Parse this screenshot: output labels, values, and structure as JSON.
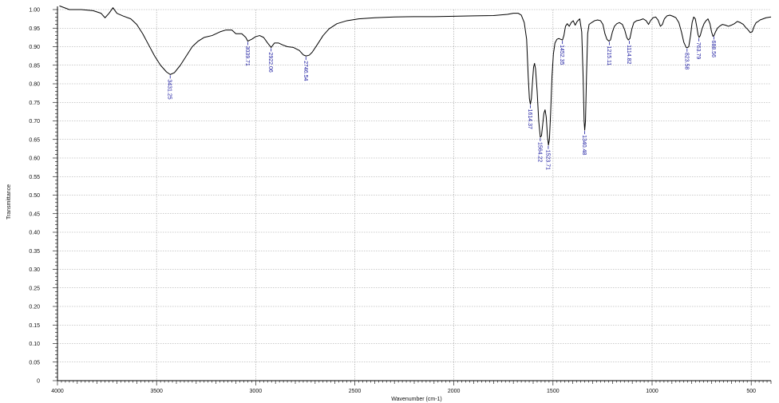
{
  "chart_data": {
    "type": "line",
    "title": "",
    "xlabel": "Wavenumber (cm-1)",
    "ylabel": "Transmittance",
    "xlim": [
      4000,
      400
    ],
    "ylim": [
      0,
      1.0
    ],
    "x_reversed": true,
    "x_ticks": [
      4000,
      3500,
      3000,
      2500,
      2000,
      1500,
      1000,
      500
    ],
    "x_tick_labels": [
      "4000",
      "3500",
      "3000",
      "2500",
      "2000",
      "1500",
      "1000",
      "500"
    ],
    "y_ticks": [
      0,
      0.05,
      0.1,
      0.15,
      0.2,
      0.25,
      0.3,
      0.35,
      0.4,
      0.45,
      0.5,
      0.55,
      0.6,
      0.65,
      0.7,
      0.75,
      0.8,
      0.85,
      0.9,
      0.95,
      1.0
    ],
    "y_tick_labels": [
      "0",
      "0.05",
      "0.10",
      "0.15",
      "0.20",
      "0.25",
      "0.30",
      "0.35",
      "0.40",
      "0.45",
      "0.50",
      "0.55",
      "0.60",
      "0.65",
      "0.70",
      "0.75",
      "0.80",
      "0.85",
      "0.90",
      "0.95",
      "1.00"
    ],
    "grid": true,
    "colors": {
      "line": "#000000",
      "peak_label": "#1a1aa0",
      "grid": "#9a9a9a"
    },
    "series": [
      {
        "points": [
          [
            3990,
            1.01
          ],
          [
            3940,
            1.0
          ],
          [
            3880,
            1.0
          ],
          [
            3820,
            0.997
          ],
          [
            3780,
            0.99
          ],
          [
            3760,
            0.978
          ],
          [
            3740,
            0.99
          ],
          [
            3720,
            1.005
          ],
          [
            3700,
            0.99
          ],
          [
            3670,
            0.983
          ],
          [
            3630,
            0.975
          ],
          [
            3600,
            0.96
          ],
          [
            3570,
            0.935
          ],
          [
            3540,
            0.905
          ],
          [
            3510,
            0.875
          ],
          [
            3480,
            0.85
          ],
          [
            3450,
            0.832
          ],
          [
            3431,
            0.825
          ],
          [
            3410,
            0.83
          ],
          [
            3380,
            0.85
          ],
          [
            3350,
            0.875
          ],
          [
            3320,
            0.9
          ],
          [
            3290,
            0.915
          ],
          [
            3260,
            0.925
          ],
          [
            3220,
            0.93
          ],
          [
            3180,
            0.94
          ],
          [
            3150,
            0.945
          ],
          [
            3120,
            0.945
          ],
          [
            3100,
            0.935
          ],
          [
            3070,
            0.935
          ],
          [
            3050,
            0.925
          ],
          [
            3040,
            0.915
          ],
          [
            3020,
            0.92
          ],
          [
            3000,
            0.927
          ],
          [
            2980,
            0.93
          ],
          [
            2960,
            0.925
          ],
          [
            2940,
            0.91
          ],
          [
            2922,
            0.898
          ],
          [
            2905,
            0.91
          ],
          [
            2885,
            0.91
          ],
          [
            2865,
            0.905
          ],
          [
            2840,
            0.9
          ],
          [
            2810,
            0.898
          ],
          [
            2780,
            0.89
          ],
          [
            2760,
            0.878
          ],
          [
            2746,
            0.875
          ],
          [
            2730,
            0.877
          ],
          [
            2715,
            0.885
          ],
          [
            2690,
            0.905
          ],
          [
            2660,
            0.93
          ],
          [
            2630,
            0.948
          ],
          [
            2590,
            0.962
          ],
          [
            2540,
            0.97
          ],
          [
            2480,
            0.975
          ],
          [
            2400,
            0.978
          ],
          [
            2300,
            0.98
          ],
          [
            2200,
            0.981
          ],
          [
            2100,
            0.981
          ],
          [
            2000,
            0.982
          ],
          [
            1900,
            0.983
          ],
          [
            1800,
            0.984
          ],
          [
            1730,
            0.987
          ],
          [
            1700,
            0.99
          ],
          [
            1675,
            0.99
          ],
          [
            1660,
            0.985
          ],
          [
            1645,
            0.965
          ],
          [
            1633,
            0.92
          ],
          [
            1625,
            0.82
          ],
          [
            1619,
            0.76
          ],
          [
            1614,
            0.745
          ],
          [
            1609,
            0.76
          ],
          [
            1604,
            0.8
          ],
          [
            1598,
            0.845
          ],
          [
            1593,
            0.855
          ],
          [
            1588,
            0.84
          ],
          [
            1580,
            0.78
          ],
          [
            1572,
            0.7
          ],
          [
            1564,
            0.656
          ],
          [
            1558,
            0.66
          ],
          [
            1552,
            0.69
          ],
          [
            1546,
            0.72
          ],
          [
            1540,
            0.73
          ],
          [
            1534,
            0.71
          ],
          [
            1528,
            0.66
          ],
          [
            1523,
            0.635
          ],
          [
            1518,
            0.65
          ],
          [
            1512,
            0.72
          ],
          [
            1505,
            0.82
          ],
          [
            1498,
            0.88
          ],
          [
            1490,
            0.91
          ],
          [
            1480,
            0.92
          ],
          [
            1470,
            0.922
          ],
          [
            1462,
            0.92
          ],
          [
            1452,
            0.918
          ],
          [
            1445,
            0.93
          ],
          [
            1437,
            0.955
          ],
          [
            1428,
            0.962
          ],
          [
            1418,
            0.955
          ],
          [
            1408,
            0.965
          ],
          [
            1398,
            0.97
          ],
          [
            1388,
            0.958
          ],
          [
            1378,
            0.968
          ],
          [
            1365,
            0.975
          ],
          [
            1355,
            0.94
          ],
          [
            1348,
            0.82
          ],
          [
            1343,
            0.7
          ],
          [
            1340,
            0.675
          ],
          [
            1336,
            0.7
          ],
          [
            1331,
            0.82
          ],
          [
            1325,
            0.935
          ],
          [
            1318,
            0.96
          ],
          [
            1305,
            0.965
          ],
          [
            1290,
            0.97
          ],
          [
            1275,
            0.972
          ],
          [
            1260,
            0.97
          ],
          [
            1248,
            0.96
          ],
          [
            1238,
            0.935
          ],
          [
            1228,
            0.92
          ],
          [
            1218,
            0.915
          ],
          [
            1210,
            0.918
          ],
          [
            1200,
            0.94
          ],
          [
            1190,
            0.955
          ],
          [
            1178,
            0.962
          ],
          [
            1165,
            0.965
          ],
          [
            1150,
            0.96
          ],
          [
            1138,
            0.945
          ],
          [
            1128,
            0.925
          ],
          [
            1120,
            0.918
          ],
          [
            1112,
            0.922
          ],
          [
            1102,
            0.948
          ],
          [
            1092,
            0.965
          ],
          [
            1078,
            0.97
          ],
          [
            1060,
            0.972
          ],
          [
            1045,
            0.975
          ],
          [
            1030,
            0.97
          ],
          [
            1018,
            0.96
          ],
          [
            1008,
            0.97
          ],
          [
            995,
            0.978
          ],
          [
            982,
            0.98
          ],
          [
            970,
            0.972
          ],
          [
            958,
            0.955
          ],
          [
            948,
            0.96
          ],
          [
            938,
            0.975
          ],
          [
            925,
            0.983
          ],
          [
            910,
            0.985
          ],
          [
            895,
            0.982
          ],
          [
            880,
            0.978
          ],
          [
            865,
            0.965
          ],
          [
            852,
            0.94
          ],
          [
            840,
            0.912
          ],
          [
            828,
            0.898
          ],
          [
            823,
            0.897
          ],
          [
            815,
            0.9
          ],
          [
            806,
            0.93
          ],
          [
            798,
            0.965
          ],
          [
            790,
            0.98
          ],
          [
            782,
            0.975
          ],
          [
            775,
            0.955
          ],
          [
            768,
            0.932
          ],
          [
            763,
            0.925
          ],
          [
            757,
            0.93
          ],
          [
            748,
            0.948
          ],
          [
            738,
            0.962
          ],
          [
            728,
            0.97
          ],
          [
            718,
            0.975
          ],
          [
            708,
            0.962
          ],
          [
            700,
            0.94
          ],
          [
            693,
            0.928
          ],
          [
            688,
            0.93
          ],
          [
            680,
            0.94
          ],
          [
            670,
            0.95
          ],
          [
            660,
            0.955
          ],
          [
            645,
            0.96
          ],
          [
            630,
            0.958
          ],
          [
            615,
            0.955
          ],
          [
            600,
            0.958
          ],
          [
            585,
            0.962
          ],
          [
            570,
            0.968
          ],
          [
            555,
            0.965
          ],
          [
            540,
            0.96
          ],
          [
            528,
            0.952
          ],
          [
            515,
            0.945
          ],
          [
            505,
            0.938
          ],
          [
            495,
            0.94
          ],
          [
            485,
            0.955
          ],
          [
            475,
            0.965
          ],
          [
            465,
            0.968
          ],
          [
            455,
            0.972
          ],
          [
            440,
            0.975
          ],
          [
            425,
            0.978
          ],
          [
            400,
            0.98
          ]
        ]
      }
    ],
    "peaks": [
      {
        "x": 3431.25,
        "y": 0.825,
        "label": "3431.25"
      },
      {
        "x": 3039.71,
        "y": 0.915,
        "label": "3039.71"
      },
      {
        "x": 2922.06,
        "y": 0.898,
        "label": "2922.06"
      },
      {
        "x": 2746.54,
        "y": 0.875,
        "label": "2746.54"
      },
      {
        "x": 1614.37,
        "y": 0.745,
        "label": "1614.37"
      },
      {
        "x": 1564.22,
        "y": 0.656,
        "label": "1564.22"
      },
      {
        "x": 1523.71,
        "y": 0.635,
        "label": "1523.71"
      },
      {
        "x": 1452.35,
        "y": 0.918,
        "label": "1452.35"
      },
      {
        "x": 1340.48,
        "y": 0.675,
        "label": "1340.48"
      },
      {
        "x": 1215.11,
        "y": 0.915,
        "label": "1215.11"
      },
      {
        "x": 1114.82,
        "y": 0.918,
        "label": "1114.82"
      },
      {
        "x": 823.58,
        "y": 0.897,
        "label": "823.58"
      },
      {
        "x": 763.79,
        "y": 0.925,
        "label": "763.79"
      },
      {
        "x": 688.56,
        "y": 0.93,
        "label": "688.56"
      }
    ]
  }
}
